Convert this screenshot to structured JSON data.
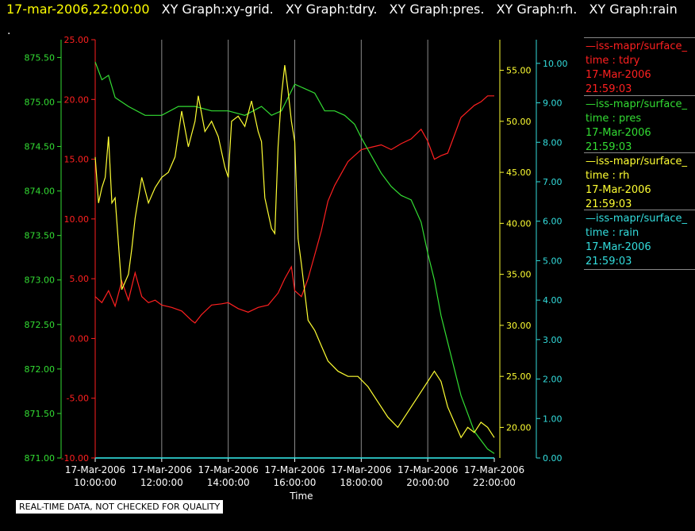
{
  "header": {
    "date": "17-mar-2006,22:00:00",
    "graphs": [
      "XY Graph:xy-grid.",
      "XY Graph:tdry.",
      "XY Graph:pres.",
      "XY Graph:rh.",
      "XY Graph:rain"
    ],
    "dot": "."
  },
  "disclaimer": "REAL-TIME DATA, NOT CHECKED FOR QUALITY",
  "legend": [
    {
      "title": "—iss-mapr/surface_",
      "line2": "time : tdry",
      "date": "17-Mar-2006",
      "time": "21:59:03",
      "color": "#ff2020"
    },
    {
      "title": "—iss-mapr/surface_",
      "line2": "time : pres",
      "date": "17-Mar-2006",
      "time": "21:59:03",
      "color": "#33dd33"
    },
    {
      "title": "—iss-mapr/surface_",
      "line2": "time : rh",
      "date": "17-Mar-2006",
      "time": "21:59:03",
      "color": "#ffff33"
    },
    {
      "title": "—iss-mapr/surface_",
      "line2": "time : rain",
      "date": "17-Mar-2006",
      "time": "21:59:03",
      "color": "#33dddd"
    }
  ],
  "chart_data": {
    "type": "line",
    "xlabel": "Time",
    "x_ticks": [
      {
        "date": "17-Mar-2006",
        "time": "10:00:00",
        "h": 10
      },
      {
        "date": "17-Mar-2006",
        "time": "12:00:00",
        "h": 12
      },
      {
        "date": "17-Mar-2006",
        "time": "14:00:00",
        "h": 14
      },
      {
        "date": "17-Mar-2006",
        "time": "16:00:00",
        "h": 16
      },
      {
        "date": "17-Mar-2006",
        "time": "18:00:00",
        "h": 18
      },
      {
        "date": "17-Mar-2006",
        "time": "20:00:00",
        "h": 20
      },
      {
        "date": "17-Mar-2006",
        "time": "22:00:00",
        "h": 22
      }
    ],
    "xlim": [
      10,
      22
    ],
    "grid": "vertical",
    "axes": {
      "pres": {
        "color": "#33dd33",
        "ylim": [
          871.0,
          875.7
        ],
        "ticks": [
          "875.50",
          "875.00",
          "874.50",
          "874.00",
          "873.50",
          "873.00",
          "872.50",
          "872.00",
          "871.50",
          "871.00"
        ]
      },
      "tdry": {
        "color": "#ff2020",
        "ylim": [
          -10,
          25
        ],
        "ticks": [
          "25.00",
          "20.00",
          "15.00",
          "10.00",
          "5.00",
          "0.00",
          "-5.00",
          "-10.00"
        ]
      },
      "rh": {
        "color": "#ffff33",
        "ylim": [
          17,
          58
        ],
        "ticks": [
          "55.00",
          "50.00",
          "45.00",
          "40.00",
          "35.00",
          "30.00",
          "25.00",
          "20.00"
        ]
      },
      "rain": {
        "color": "#33dddd",
        "ylim": [
          0,
          10.6
        ],
        "ticks": [
          "10.00",
          "9.00",
          "8.00",
          "7.00",
          "6.00",
          "5.00",
          "4.00",
          "3.00",
          "2.00",
          "1.00",
          "0.00"
        ]
      }
    },
    "series": [
      {
        "name": "tdry",
        "axis": "tdry",
        "color": "#ff2020",
        "x": [
          10,
          10.2,
          10.4,
          10.6,
          10.8,
          11,
          11.2,
          11.4,
          11.6,
          11.8,
          12,
          12.3,
          12.6,
          12.9,
          13,
          13.2,
          13.5,
          13.8,
          14,
          14.3,
          14.6,
          14.9,
          15.2,
          15.5,
          15.7,
          15.9,
          16,
          16.2,
          16.4,
          16.6,
          16.8,
          17,
          17.2,
          17.4,
          17.6,
          17.8,
          18,
          18.3,
          18.6,
          18.9,
          19.2,
          19.5,
          19.8,
          20,
          20.2,
          20.4,
          20.6,
          20.8,
          21,
          21.2,
          21.4,
          21.6,
          21.8,
          22
        ],
        "values": [
          3.5,
          3.0,
          4.0,
          2.7,
          4.8,
          3.2,
          5.5,
          3.5,
          3.0,
          3.2,
          2.8,
          2.6,
          2.3,
          1.5,
          1.3,
          2.0,
          2.8,
          2.9,
          3.0,
          2.5,
          2.2,
          2.6,
          2.8,
          3.8,
          5.0,
          6.0,
          4.0,
          3.5,
          5.0,
          7.0,
          9.0,
          11.5,
          12.8,
          13.8,
          14.8,
          15.3,
          15.8,
          16.0,
          16.2,
          15.8,
          16.3,
          16.7,
          17.5,
          16.5,
          15.0,
          15.3,
          15.5,
          17.0,
          18.5,
          19.0,
          19.5,
          19.8,
          20.3,
          20.3
        ]
      },
      {
        "name": "pres",
        "axis": "pres",
        "color": "#33dd33",
        "x": [
          10,
          10.2,
          10.4,
          10.6,
          10.8,
          11,
          11.5,
          12,
          12.5,
          13,
          13.5,
          14,
          14.5,
          15,
          15.3,
          15.6,
          15.8,
          16,
          16.3,
          16.6,
          16.9,
          17.2,
          17.5,
          17.8,
          18,
          18.3,
          18.6,
          18.9,
          19.2,
          19.5,
          19.8,
          20,
          20.2,
          20.4,
          20.6,
          20.8,
          21,
          21.2,
          21.4,
          21.6,
          21.8,
          22
        ],
        "values": [
          875.45,
          875.25,
          875.3,
          875.05,
          875.0,
          874.95,
          874.85,
          874.85,
          874.95,
          874.95,
          874.9,
          874.9,
          874.85,
          874.95,
          874.85,
          874.9,
          875.05,
          875.2,
          875.15,
          875.1,
          874.9,
          874.9,
          874.85,
          874.75,
          874.6,
          874.4,
          874.2,
          874.05,
          873.95,
          873.9,
          873.65,
          873.3,
          873.0,
          872.6,
          872.3,
          872.0,
          871.7,
          871.5,
          871.3,
          871.2,
          871.1,
          871.05
        ]
      },
      {
        "name": "rh",
        "axis": "rh",
        "color": "#ffff33",
        "x": [
          10,
          10.1,
          10.2,
          10.3,
          10.4,
          10.5,
          10.6,
          10.8,
          11,
          11.1,
          11.2,
          11.4,
          11.6,
          11.8,
          12,
          12.2,
          12.4,
          12.6,
          12.8,
          13,
          13.1,
          13.3,
          13.5,
          13.7,
          13.9,
          14,
          14.1,
          14.3,
          14.5,
          14.7,
          14.9,
          15,
          15.1,
          15.3,
          15.4,
          15.5,
          15.6,
          15.7,
          15.8,
          15.9,
          16,
          16.1,
          16.2,
          16.4,
          16.6,
          16.8,
          17,
          17.3,
          17.6,
          17.9,
          18.2,
          18.5,
          18.8,
          19.1,
          19.4,
          19.7,
          20,
          20.2,
          20.4,
          20.6,
          20.8,
          21,
          21.2,
          21.4,
          21.6,
          21.8,
          22
        ],
        "values": [
          46.5,
          42.0,
          43.5,
          44.5,
          48.5,
          42.0,
          42.5,
          33.5,
          35.0,
          37.5,
          40.5,
          44.5,
          42.0,
          43.5,
          44.5,
          45.0,
          46.5,
          51.0,
          47.5,
          50.0,
          52.5,
          49.0,
          50.0,
          48.5,
          45.5,
          44.5,
          50.0,
          50.5,
          49.5,
          52.0,
          49.0,
          48.0,
          42.5,
          39.5,
          39.0,
          47.5,
          52.5,
          55.5,
          53.0,
          50.0,
          48.0,
          38.5,
          36.0,
          30.5,
          29.5,
          28.0,
          26.5,
          25.5,
          25.0,
          25.0,
          24.0,
          22.5,
          21.0,
          20.0,
          21.5,
          23.0,
          24.5,
          25.5,
          24.5,
          22.0,
          20.5,
          19.0,
          20.0,
          19.5,
          20.5,
          20.0,
          19.0
        ]
      },
      {
        "name": "rain",
        "axis": "rain",
        "color": "#33dddd",
        "x": [
          10,
          22
        ],
        "values": [
          0,
          0
        ]
      }
    ]
  }
}
